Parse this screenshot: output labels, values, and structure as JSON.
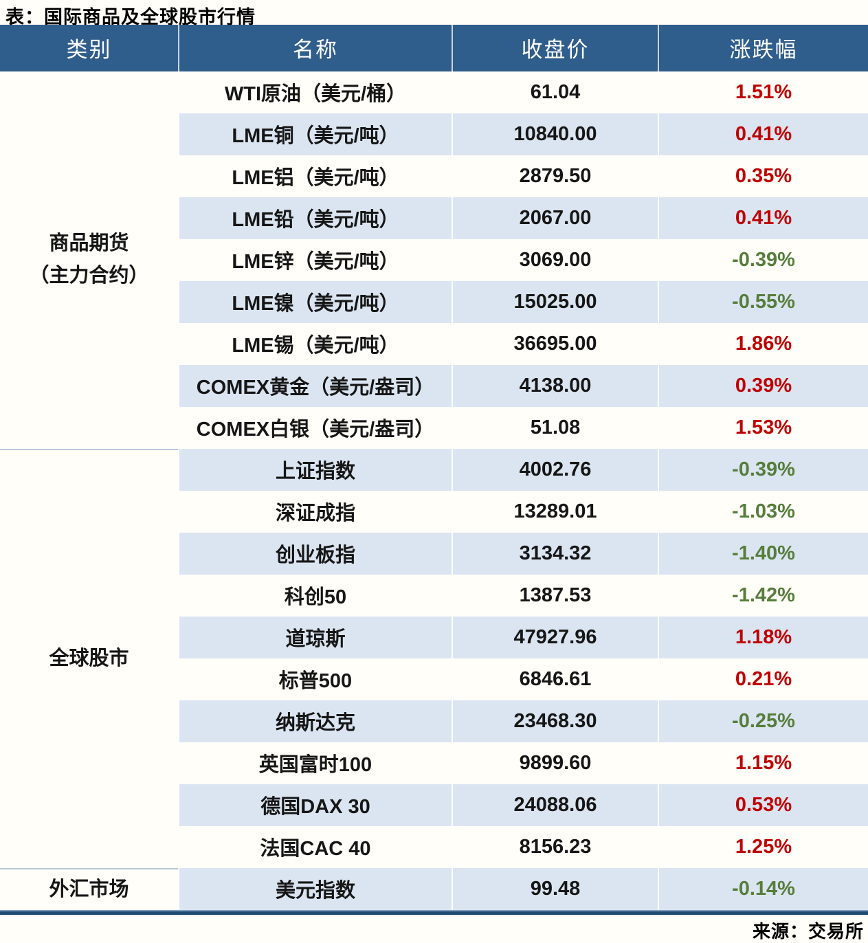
{
  "title": "表：国际商品及全球股市行情",
  "source": "来源：交易所",
  "colors": {
    "header_bg": "#2f5d8c",
    "header_text": "#ffffff",
    "stripe_blue": "#dbe5f1",
    "up_red": "#c00000",
    "down_green": "#567d3b",
    "bottom_border": "#1f4a72"
  },
  "chart_data": {
    "type": "table",
    "title": "表：国际商品及全球股市行情",
    "columns": [
      "类别",
      "名称",
      "收盘价",
      "涨跌幅"
    ],
    "sections": [
      {
        "category": "商品期货（主力合约）",
        "category_lines": [
          "商品期货",
          "（主力合约）"
        ],
        "rows": [
          {
            "name": "WTI原油（美元/桶）",
            "close": "61.04",
            "change": "1.51%",
            "direction": "up"
          },
          {
            "name": "LME铜（美元/吨）",
            "close": "10840.00",
            "change": "0.41%",
            "direction": "up"
          },
          {
            "name": "LME铝（美元/吨）",
            "close": "2879.50",
            "change": "0.35%",
            "direction": "up"
          },
          {
            "name": "LME铅（美元/吨）",
            "close": "2067.00",
            "change": "0.41%",
            "direction": "up"
          },
          {
            "name": "LME锌（美元/吨）",
            "close": "3069.00",
            "change": "-0.39%",
            "direction": "down"
          },
          {
            "name": "LME镍（美元/吨）",
            "close": "15025.00",
            "change": "-0.55%",
            "direction": "down"
          },
          {
            "name": "LME锡（美元/吨）",
            "close": "36695.00",
            "change": "1.86%",
            "direction": "up"
          },
          {
            "name": "COMEX黄金（美元/盎司）",
            "close": "4138.00",
            "change": "0.39%",
            "direction": "up"
          },
          {
            "name": "COMEX白银（美元/盎司）",
            "close": "51.08",
            "change": "1.53%",
            "direction": "up"
          }
        ]
      },
      {
        "category": "全球股市",
        "category_lines": [
          "全球股市"
        ],
        "rows": [
          {
            "name": "上证指数",
            "close": "4002.76",
            "change": "-0.39%",
            "direction": "down"
          },
          {
            "name": "深证成指",
            "close": "13289.01",
            "change": "-1.03%",
            "direction": "down"
          },
          {
            "name": "创业板指",
            "close": "3134.32",
            "change": "-1.40%",
            "direction": "down"
          },
          {
            "name": "科创50",
            "close": "1387.53",
            "change": "-1.42%",
            "direction": "down"
          },
          {
            "name": "道琼斯",
            "close": "47927.96",
            "change": "1.18%",
            "direction": "up"
          },
          {
            "name": "标普500",
            "close": "6846.61",
            "change": "0.21%",
            "direction": "up"
          },
          {
            "name": "纳斯达克",
            "close": "23468.30",
            "change": "-0.25%",
            "direction": "down"
          },
          {
            "name": "英国富时100",
            "close": "9899.60",
            "change": "1.15%",
            "direction": "up"
          },
          {
            "name": "德国DAX 30",
            "close": "24088.06",
            "change": "0.53%",
            "direction": "up"
          },
          {
            "name": "法国CAC 40",
            "close": "8156.23",
            "change": "1.25%",
            "direction": "up"
          }
        ]
      },
      {
        "category": "外汇市场",
        "category_lines": [
          "外汇市场"
        ],
        "rows": [
          {
            "name": "美元指数",
            "close": "99.48",
            "change": "-0.14%",
            "direction": "down"
          }
        ]
      }
    ]
  }
}
